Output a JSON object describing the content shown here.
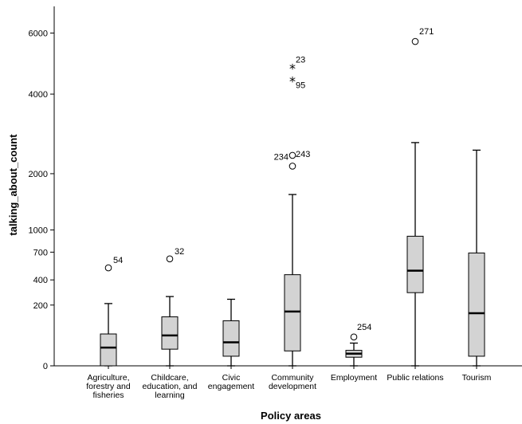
{
  "chart_data": {
    "type": "boxplot",
    "xlabel": "Policy areas",
    "ylabel": "talking_about_count",
    "y_scale": "square-root",
    "ylim": [
      0,
      7000
    ],
    "y_ticks": [
      0,
      200,
      400,
      700,
      1000,
      2000,
      4000,
      6000
    ],
    "grid": false,
    "box_color": "#d3d3d3",
    "categories": [
      {
        "label_lines": [
          "Agriculture,",
          "forestry and",
          "fisheries"
        ],
        "whisker_low": 0,
        "q1": 0,
        "median": 18,
        "q3": 55,
        "whisker_high": 210,
        "outliers": [
          {
            "id": "54",
            "value": 520,
            "marker": "circle"
          }
        ]
      },
      {
        "label_lines": [
          "Childcare,",
          "education, and",
          "learning"
        ],
        "whisker_low": 0,
        "q1": 15,
        "median": 50,
        "q3": 130,
        "whisker_high": 260,
        "outliers": [
          {
            "id": "32",
            "value": 620,
            "marker": "circle"
          }
        ]
      },
      {
        "label_lines": [
          "Civic",
          "engagement"
        ],
        "whisker_low": 0,
        "q1": 5,
        "median": 30,
        "q3": 110,
        "whisker_high": 240,
        "outliers": []
      },
      {
        "label_lines": [
          "Community",
          "development"
        ],
        "whisker_low": 0,
        "q1": 12,
        "median": 160,
        "q3": 450,
        "whisker_high": 1590,
        "outliers": [
          {
            "id": "234",
            "value": 2160,
            "marker": "circle"
          },
          {
            "id": "243",
            "value": 2400,
            "marker": "circle"
          },
          {
            "id": "95",
            "value": 4400,
            "marker": "star"
          },
          {
            "id": "23",
            "value": 4800,
            "marker": "star"
          }
        ]
      },
      {
        "label_lines": [
          "Employment"
        ],
        "whisker_low": 0,
        "q1": 4,
        "median": 8,
        "q3": 13,
        "whisker_high": 28,
        "outliers": [
          {
            "id": "254",
            "value": 45,
            "marker": "circle"
          }
        ]
      },
      {
        "label_lines": [
          "Public relations"
        ],
        "whisker_low": 0,
        "q1": 290,
        "median": 490,
        "q3": 910,
        "whisker_high": 2700,
        "outliers": [
          {
            "id": "271",
            "value": 5700,
            "marker": "circle"
          }
        ]
      },
      {
        "label_lines": [
          "Tourism"
        ],
        "whisker_low": 0,
        "q1": 5,
        "median": 150,
        "q3": 690,
        "whisker_high": 2520,
        "outliers": []
      }
    ]
  }
}
